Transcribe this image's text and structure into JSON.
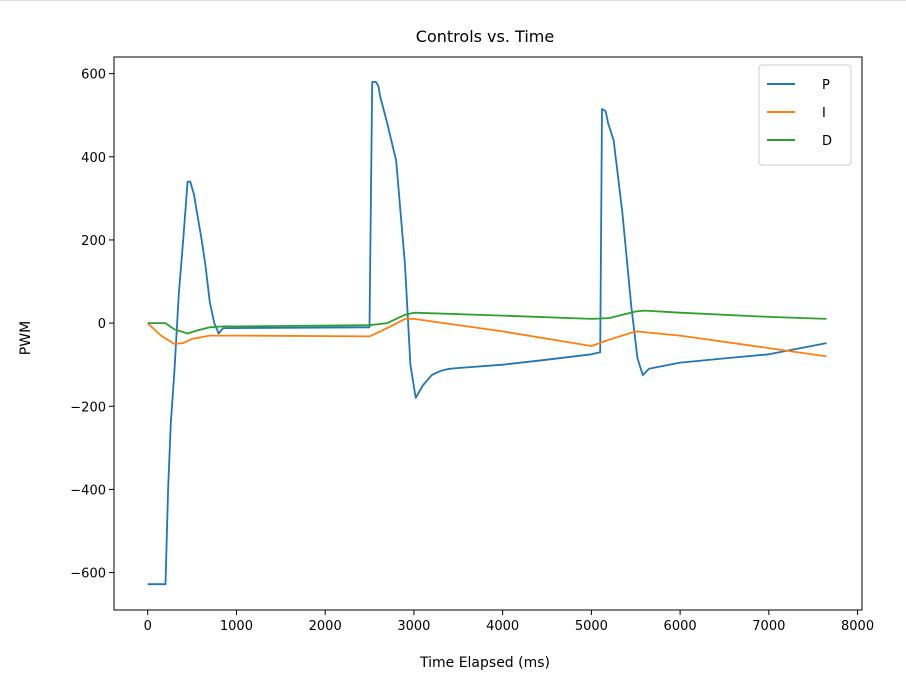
{
  "chart_data": {
    "type": "line",
    "title": "Controls vs. Time",
    "xlabel": "Time Elapsed (ms)",
    "ylabel": "PWM",
    "xlim": [
      -380,
      8050
    ],
    "ylim": [
      -690,
      640
    ],
    "xticks": [
      0,
      1000,
      2000,
      3000,
      4000,
      5000,
      6000,
      7000,
      8000
    ],
    "xtick_labels": [
      "0",
      "1000",
      "2000",
      "3000",
      "4000",
      "5000",
      "6000",
      "7000",
      "8000"
    ],
    "yticks": [
      -600,
      -400,
      -200,
      0,
      200,
      400,
      600
    ],
    "ytick_labels": [
      "−600",
      "−400",
      "−200",
      "0",
      "200",
      "400",
      "600"
    ],
    "legend_position": "top-right",
    "grid": false,
    "series": [
      {
        "name": "P",
        "color": "#1f77b4",
        "x": [
          0,
          200,
          230,
          260,
          300,
          350,
          400,
          450,
          480,
          520,
          560,
          600,
          650,
          700,
          750,
          800,
          850,
          2500,
          2530,
          2570,
          2600,
          2620,
          2700,
          2800,
          2900,
          2960,
          3020,
          3100,
          3200,
          3300,
          3400,
          3500,
          4000,
          4500,
          5000,
          5100,
          5120,
          5160,
          5190,
          5250,
          5350,
          5450,
          5520,
          5580,
          5650,
          6000,
          6500,
          7000,
          7650
        ],
        "y": [
          -628,
          -628,
          -400,
          -240,
          -120,
          70,
          200,
          340,
          340,
          310,
          260,
          210,
          140,
          50,
          0,
          -25,
          -12,
          -10,
          580,
          580,
          570,
          545,
          480,
          390,
          140,
          -100,
          -180,
          -150,
          -125,
          -115,
          -110,
          -108,
          -100,
          -88,
          -75,
          -70,
          515,
          510,
          480,
          440,
          265,
          40,
          -85,
          -125,
          -110,
          -95,
          -85,
          -75,
          -48
        ]
      },
      {
        "name": "I",
        "color": "#ff7f0e",
        "x": [
          0,
          150,
          300,
          400,
          500,
          700,
          1000,
          2500,
          2700,
          2900,
          3000,
          4000,
          5000,
          5200,
          5500,
          6000,
          7000,
          7650
        ],
        "y": [
          0,
          -30,
          -50,
          -48,
          -38,
          -30,
          -30,
          -32,
          -12,
          10,
          10,
          -20,
          -55,
          -40,
          -20,
          -30,
          -60,
          -80
        ]
      },
      {
        "name": "D",
        "color": "#2ca02c",
        "x": [
          0,
          200,
          300,
          450,
          550,
          700,
          850,
          1000,
          2500,
          2700,
          2900,
          3000,
          4000,
          5000,
          5200,
          5500,
          5600,
          6000,
          7000,
          7650
        ],
        "y": [
          0,
          0,
          -15,
          -25,
          -18,
          -10,
          -8,
          -8,
          -5,
          0,
          20,
          25,
          18,
          10,
          12,
          28,
          30,
          25,
          15,
          10
        ]
      }
    ]
  }
}
